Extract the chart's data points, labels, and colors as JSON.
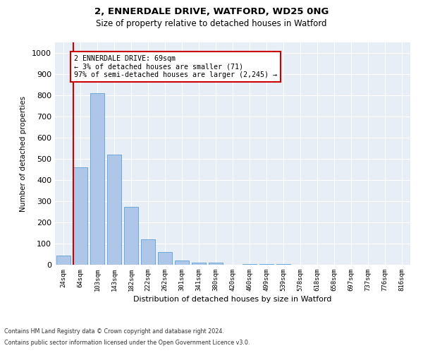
{
  "title_line1": "2, ENNERDALE DRIVE, WATFORD, WD25 0NG",
  "title_line2": "Size of property relative to detached houses in Watford",
  "xlabel": "Distribution of detached houses by size in Watford",
  "ylabel": "Number of detached properties",
  "categories": [
    "24sqm",
    "64sqm",
    "103sqm",
    "143sqm",
    "182sqm",
    "222sqm",
    "262sqm",
    "301sqm",
    "341sqm",
    "380sqm",
    "420sqm",
    "460sqm",
    "499sqm",
    "539sqm",
    "578sqm",
    "618sqm",
    "658sqm",
    "697sqm",
    "737sqm",
    "776sqm",
    "816sqm"
  ],
  "values": [
    45,
    460,
    810,
    520,
    275,
    120,
    60,
    20,
    10,
    10,
    0,
    5,
    5,
    5,
    0,
    0,
    0,
    0,
    0,
    0,
    0
  ],
  "bar_color": "#aec6e8",
  "bar_edge_color": "#5a9fd4",
  "vline_color": "#cc0000",
  "annotation_text": "2 ENNERDALE DRIVE: 69sqm\n← 3% of detached houses are smaller (71)\n97% of semi-detached houses are larger (2,245) →",
  "annotation_box_color": "#ffffff",
  "annotation_box_edge_color": "#cc0000",
  "ylim": [
    0,
    1050
  ],
  "yticks": [
    0,
    100,
    200,
    300,
    400,
    500,
    600,
    700,
    800,
    900,
    1000
  ],
  "background_color": "#e8eef5",
  "footer_line1": "Contains HM Land Registry data © Crown copyright and database right 2024.",
  "footer_line2": "Contains public sector information licensed under the Open Government Licence v3.0."
}
